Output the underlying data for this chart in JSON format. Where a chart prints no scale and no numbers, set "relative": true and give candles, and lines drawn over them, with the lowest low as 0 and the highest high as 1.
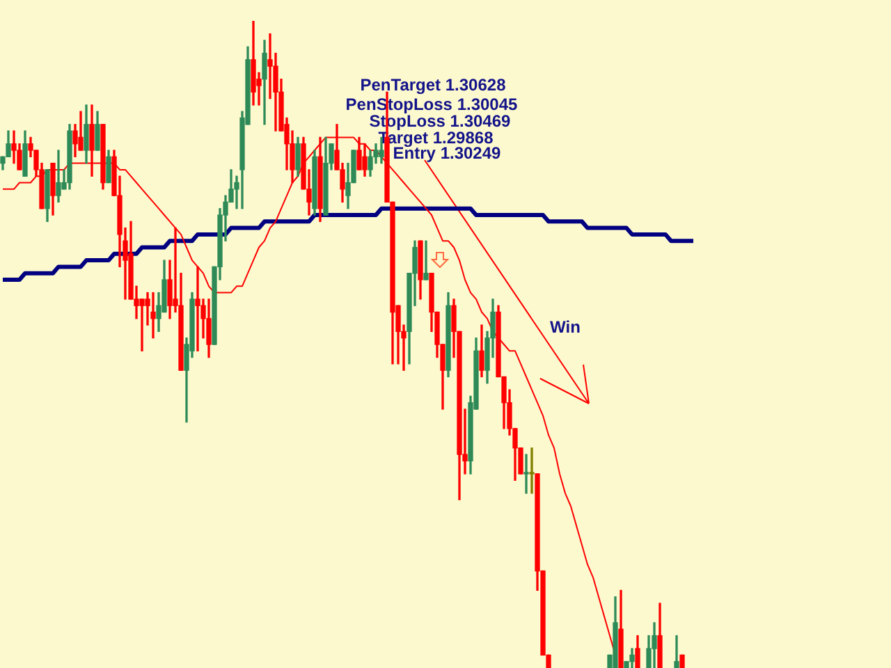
{
  "chart_data": {
    "type": "candlestick",
    "relative": true,
    "tick_labels": false,
    "marker": "none",
    "categories": [
      null,
      null,
      null,
      null,
      null,
      null,
      null,
      null,
      null,
      null,
      null,
      null,
      null,
      null,
      null,
      null,
      null,
      null,
      null,
      null,
      null,
      null,
      null,
      null,
      null,
      null,
      null,
      null,
      null,
      null,
      null,
      null,
      null,
      null,
      null,
      null,
      null,
      null,
      null,
      null,
      null,
      null,
      null,
      null,
      null,
      null,
      null,
      null,
      null,
      null,
      null,
      null,
      null,
      null,
      null,
      null,
      null,
      null,
      null,
      null,
      null,
      null,
      null,
      null,
      null,
      null,
      null,
      null,
      null,
      null,
      null,
      null,
      null,
      null,
      null,
      null,
      null,
      null,
      null,
      null,
      null,
      null,
      null,
      null,
      null,
      null,
      null,
      null,
      null,
      null,
      null,
      null,
      null,
      null,
      null,
      null,
      null,
      null,
      null,
      null,
      null,
      null,
      null,
      null,
      null,
      null,
      null,
      null,
      null,
      null,
      null,
      null,
      null,
      null,
      null,
      null,
      null,
      null,
      null,
      null,
      null,
      null,
      null,
      null,
      null,
      null,
      null,
      null,
      null,
      null,
      null,
      null,
      null,
      null,
      null,
      null,
      null,
      null,
      null,
      null,
      null,
      null,
      null,
      null,
      null,
      null,
      null,
      null,
      null,
      null,
      null,
      null,
      null,
      null,
      null,
      null,
      null,
      null,
      null,
      null
    ],
    "ohlc": [
      [
        0.78,
        0.79,
        0.77,
        0.79
      ],
      [
        0.79,
        0.83,
        0.79,
        0.81
      ],
      [
        0.81,
        0.83,
        0.78,
        0.8
      ],
      [
        0.8,
        0.81,
        0.77,
        0.77
      ],
      [
        0.76,
        0.83,
        0.76,
        0.81
      ],
      [
        0.81,
        0.82,
        0.79,
        0.8
      ],
      [
        0.8,
        0.8,
        0.76,
        0.77
      ],
      [
        0.77,
        0.78,
        0.71,
        0.71
      ],
      [
        0.71,
        0.77,
        0.69,
        0.77
      ],
      [
        0.78,
        0.78,
        0.7,
        0.73
      ],
      [
        0.73,
        0.8,
        0.72,
        0.75
      ],
      [
        0.74,
        0.77,
        0.74,
        0.75
      ],
      [
        0.75,
        0.84,
        0.74,
        0.83
      ],
      [
        0.83,
        0.84,
        0.79,
        0.81
      ],
      [
        0.82,
        0.86,
        0.8,
        0.8
      ],
      [
        0.8,
        0.87,
        0.78,
        0.84
      ],
      [
        0.84,
        0.87,
        0.76,
        0.8
      ],
      [
        0.8,
        0.86,
        0.8,
        0.84
      ],
      [
        0.84,
        0.84,
        0.74,
        0.75
      ],
      [
        0.75,
        0.8,
        0.75,
        0.79
      ],
      [
        0.79,
        0.8,
        0.73,
        0.73
      ],
      [
        0.73,
        0.76,
        0.62,
        0.67
      ],
      [
        0.66,
        0.68,
        0.57,
        0.63
      ],
      [
        0.64,
        0.69,
        0.57,
        0.57
      ],
      [
        0.57,
        0.59,
        0.54,
        0.56
      ],
      [
        0.57,
        0.57,
        0.49,
        0.56
      ],
      [
        0.57,
        0.58,
        0.53,
        0.56
      ],
      [
        0.55,
        0.58,
        0.51,
        0.54
      ],
      [
        0.54,
        0.58,
        0.52,
        0.56
      ],
      [
        0.55,
        0.63,
        0.55,
        0.6
      ],
      [
        0.6,
        0.63,
        0.54,
        0.56
      ],
      [
        0.57,
        0.68,
        0.55,
        0.56
      ],
      [
        0.56,
        0.61,
        0.46,
        0.46
      ],
      [
        0.46,
        0.51,
        0.38,
        0.5
      ],
      [
        0.49,
        0.58,
        0.48,
        0.57
      ],
      [
        0.57,
        0.62,
        0.49,
        0.56
      ],
      [
        0.56,
        0.57,
        0.51,
        0.54
      ],
      [
        0.54,
        0.57,
        0.48,
        0.5
      ],
      [
        0.5,
        0.62,
        0.5,
        0.62
      ],
      [
        0.62,
        0.71,
        0.6,
        0.7
      ],
      [
        0.7,
        0.73,
        0.66,
        0.72
      ],
      [
        0.72,
        0.77,
        0.72,
        0.74
      ],
      [
        0.74,
        0.76,
        0.71,
        0.75
      ],
      [
        0.77,
        0.86,
        0.71,
        0.85
      ],
      [
        0.84,
        0.96,
        0.84,
        0.94
      ],
      [
        0.94,
        1.0,
        0.87,
        0.89
      ],
      [
        0.91,
        0.92,
        0.87,
        0.9
      ],
      [
        0.91,
        0.97,
        0.84,
        0.95
      ],
      [
        0.94,
        0.98,
        0.88,
        0.93
      ],
      [
        0.93,
        0.95,
        0.83,
        0.89
      ],
      [
        0.89,
        0.91,
        0.83,
        0.83
      ],
      [
        0.84,
        0.85,
        0.77,
        0.81
      ],
      [
        0.81,
        0.83,
        0.75,
        0.77
      ],
      [
        0.77,
        0.82,
        0.76,
        0.81
      ],
      [
        0.81,
        0.82,
        0.74,
        0.74
      ],
      [
        0.74,
        0.77,
        0.7,
        0.72
      ],
      [
        0.71,
        0.8,
        0.7,
        0.79
      ],
      [
        0.79,
        0.82,
        0.69,
        0.71
      ],
      [
        0.7,
        0.82,
        0.7,
        0.78
      ],
      [
        0.78,
        0.81,
        0.77,
        0.81
      ],
      [
        0.8,
        0.84,
        0.77,
        0.77
      ],
      [
        0.77,
        0.78,
        0.72,
        0.74
      ],
      [
        0.73,
        0.78,
        0.71,
        0.75
      ],
      [
        0.75,
        0.8,
        0.75,
        0.8
      ],
      [
        0.8,
        0.82,
        0.77,
        0.77
      ],
      [
        0.79,
        0.81,
        0.76,
        0.77
      ],
      [
        0.77,
        0.8,
        0.76,
        0.79
      ],
      [
        0.79,
        0.81,
        0.78,
        0.8
      ],
      [
        0.79,
        0.82,
        0.78,
        0.8
      ],
      [
        0.82,
        0.89,
        0.72,
        0.72
      ],
      [
        0.72,
        0.72,
        0.47,
        0.55
      ],
      [
        0.56,
        0.56,
        0.47,
        0.52
      ],
      [
        0.52,
        0.53,
        0.46,
        0.51
      ],
      [
        0.52,
        0.61,
        0.47,
        0.61
      ],
      [
        0.61,
        0.66,
        0.56,
        0.65
      ],
      [
        0.66,
        0.66,
        0.57,
        0.6
      ],
      [
        0.6,
        0.66,
        0.6,
        0.61
      ],
      [
        0.61,
        0.61,
        0.52,
        0.55
      ],
      [
        0.55,
        0.55,
        0.48,
        0.5
      ],
      [
        0.5,
        0.5,
        0.4,
        0.46
      ],
      [
        0.46,
        0.58,
        0.45,
        0.56
      ],
      [
        0.56,
        0.57,
        0.48,
        0.52
      ],
      [
        0.52,
        0.52,
        0.26,
        0.33
      ],
      [
        0.33,
        0.4,
        0.3,
        0.32
      ],
      [
        0.32,
        0.42,
        0.3,
        0.41
      ],
      [
        0.4,
        0.51,
        0.4,
        0.49
      ],
      [
        0.49,
        0.53,
        0.45,
        0.46
      ],
      [
        0.46,
        0.52,
        0.44,
        0.51
      ],
      [
        0.51,
        0.57,
        0.48,
        0.55
      ],
      [
        0.55,
        0.56,
        0.45,
        0.45
      ],
      [
        0.45,
        0.45,
        0.37,
        0.41
      ],
      [
        0.41,
        0.43,
        0.36,
        0.37
      ],
      [
        0.37,
        0.37,
        0.29,
        0.34
      ],
      [
        0.34,
        0.34,
        0.3,
        0.3
      ],
      [
        0.3,
        0.33,
        0.27,
        0.3
      ],
      [
        0.3,
        0.34,
        0.27,
        0.3
      ],
      [
        0.3,
        0.3,
        0.12,
        0.15
      ],
      [
        0.15,
        0.15,
        0.02,
        0.02
      ],
      [
        0.02,
        0.02,
        0,
        0
      ],
      null,
      null,
      null,
      null,
      null,
      null,
      null,
      null,
      null,
      null,
      [
        0,
        0.02,
        0,
        0.02
      ],
      [
        0,
        0.11,
        0,
        0.07
      ],
      [
        0.06,
        0.12,
        0,
        0
      ],
      [
        0,
        0.01,
        0,
        0.01
      ],
      [
        0.01,
        0.03,
        0,
        0.02
      ],
      [
        0.03,
        0.05,
        0,
        0
      ],
      null,
      [
        0,
        0.05,
        0,
        0.03
      ],
      [
        0.03,
        0.07,
        0,
        0.05
      ],
      [
        0.05,
        0.1,
        0,
        0
      ],
      null,
      null,
      [
        0,
        0.05,
        0,
        0.01
      ],
      [
        0.02,
        0.02,
        0,
        0
      ],
      null,
      null,
      null,
      null,
      null,
      null,
      null,
      null,
      null,
      null,
      null,
      null,
      null,
      null,
      null,
      null,
      null,
      null,
      null,
      null,
      null,
      null,
      null,
      null,
      null,
      null,
      null,
      null,
      null,
      null,
      null,
      null,
      null,
      null,
      null,
      null,
      null
    ],
    "colors": [
      "#2e8b57",
      "#2e8b57",
      "#ff0000",
      "#ff0000",
      "#2e8b57",
      "#ff0000",
      "#ff0000",
      "#ff0000",
      "#2e8b57",
      "#ff0000",
      "#2e8b57",
      "#2e8b57",
      "#2e8b57",
      "#ff0000",
      "#ff0000",
      "#2e8b57",
      "#ff0000",
      "#2e8b57",
      "#ff0000",
      "#2e8b57",
      "#ff0000",
      "#ff0000",
      "#ff0000",
      "#ff0000",
      "#ff0000",
      "#ff0000",
      "#ff0000",
      "#ff0000",
      "#2e8b57",
      "#2e8b57",
      "#ff0000",
      "#ff0000",
      "#ff0000",
      "#2e8b57",
      "#2e8b57",
      "#ff0000",
      "#ff0000",
      "#ff0000",
      "#2e8b57",
      "#2e8b57",
      "#2e8b57",
      "#2e8b57",
      "#2e8b57",
      "#2e8b57",
      "#2e8b57",
      "#ff0000",
      "#ff0000",
      "#2e8b57",
      "#ff0000",
      "#ff0000",
      "#ff0000",
      "#ff0000",
      "#ff0000",
      "#2e8b57",
      "#ff0000",
      "#ff0000",
      "#2e8b57",
      "#ff0000",
      "#2e8b57",
      "#2e8b57",
      "#ff0000",
      "#ff0000",
      "#2e8b57",
      "#2e8b57",
      "#ff0000",
      "#ff0000",
      "#2e8b57",
      "#2e8b57",
      "#2e8b57",
      "#ff0000",
      "#ff0000",
      "#ff0000",
      "#ff0000",
      "#2e8b57",
      "#2e8b57",
      "#ff0000",
      "#2e8b57",
      "#ff0000",
      "#ff0000",
      "#ff0000",
      "#2e8b57",
      "#ff0000",
      "#ff0000",
      "#ff0000",
      "#2e8b57",
      "#2e8b57",
      "#ff0000",
      "#2e8b57",
      "#2e8b57",
      "#ff0000",
      "#ff0000",
      "#ff0000",
      "#ff0000",
      "#ff0000",
      "#2e8b57",
      "#808000",
      "#ff0000",
      "#ff0000",
      "#ff0000",
      null,
      null,
      null,
      null,
      null,
      null,
      null,
      null,
      null,
      null,
      "#2e8b57",
      "#2e8b57",
      "#ff0000",
      "#2e8b57",
      "#2e8b57",
      "#ff0000",
      null,
      "#2e8b57",
      "#2e8b57",
      "#ff0000",
      null,
      null,
      "#2e8b57",
      "#ff0000",
      null,
      null,
      null,
      null,
      null,
      null,
      null,
      null,
      null,
      null,
      null,
      null,
      null,
      null,
      null,
      null,
      null,
      null,
      null,
      null,
      null,
      null,
      null,
      null,
      null,
      null,
      null,
      null,
      null,
      null,
      null,
      null,
      null,
      null,
      null,
      null,
      null
    ],
    "series": [
      {
        "type": "line",
        "color": "#ff0000",
        "values": [
          0.74,
          0.74,
          0.74,
          0.75,
          0.75,
          0.75,
          0.76,
          0.76,
          0.77,
          0.77,
          0.77,
          0.77,
          0.78,
          0.78,
          0.78,
          0.78,
          0.78,
          0.78,
          0.78,
          0.78,
          0.78,
          0.77,
          0.77,
          0.76,
          0.75,
          0.74,
          0.73,
          0.72,
          0.71,
          0.7,
          0.69,
          0.68,
          0.67,
          0.65,
          0.63,
          0.62,
          0.61,
          0.59,
          0.58,
          0.58,
          0.58,
          0.58,
          0.59,
          0.59,
          0.61,
          0.63,
          0.65,
          0.66,
          0.68,
          0.69,
          0.71,
          0.73,
          0.75,
          0.76,
          0.78,
          0.79,
          0.8,
          0.81,
          0.82,
          0.82,
          0.82,
          0.82,
          0.82,
          0.82,
          0.81,
          0.81,
          0.8,
          0.8,
          0.79,
          0.78,
          0.77,
          0.76,
          0.75,
          0.74,
          0.73,
          0.72,
          0.71,
          0.7,
          0.68,
          0.66,
          0.66,
          0.65,
          0.63,
          0.6,
          0.58,
          0.57,
          0.55,
          0.54,
          0.52,
          0.51,
          0.5,
          0.49,
          0.49,
          0.47,
          0.45,
          0.43,
          0.41,
          0.39,
          0.36,
          0.34,
          0.3,
          0.27,
          0.25,
          0.22,
          0.19,
          0.16,
          0.14,
          0.11,
          0.08,
          0.05,
          0.02,
          null,
          null,
          null,
          null,
          null,
          null,
          null,
          null,
          null,
          null,
          null,
          null,
          null,
          null,
          null,
          null,
          null,
          null,
          null,
          null,
          null,
          null,
          null,
          null,
          null,
          null,
          null,
          null,
          null,
          null,
          null,
          null,
          null,
          null,
          null,
          null,
          null,
          null,
          null,
          null,
          null,
          null,
          null,
          null,
          null,
          null,
          null,
          null,
          null
        ]
      },
      {
        "type": "line",
        "color": "#000080",
        "values": [
          0.6,
          0.6,
          0.6,
          0.6,
          0.61,
          0.61,
          0.61,
          0.61,
          0.61,
          0.61,
          0.62,
          0.62,
          0.62,
          0.62,
          0.62,
          0.63,
          0.63,
          0.63,
          0.63,
          0.63,
          0.64,
          0.64,
          0.64,
          0.64,
          0.64,
          0.65,
          0.65,
          0.65,
          0.65,
          0.65,
          0.66,
          0.66,
          0.66,
          0.66,
          0.66,
          0.67,
          0.67,
          0.67,
          0.67,
          0.67,
          0.67,
          0.68,
          0.68,
          0.68,
          0.68,
          0.68,
          0.68,
          0.69,
          0.69,
          0.69,
          0.69,
          0.69,
          0.69,
          0.69,
          0.69,
          0.69,
          0.7,
          0.7,
          0.7,
          0.7,
          0.7,
          0.7,
          0.7,
          0.7,
          0.7,
          0.7,
          0.7,
          0.7,
          0.71,
          0.71,
          0.71,
          0.71,
          0.71,
          0.71,
          0.71,
          0.71,
          0.71,
          0.71,
          0.71,
          0.71,
          0.71,
          0.71,
          0.71,
          0.71,
          0.71,
          0.7,
          0.7,
          0.7,
          0.7,
          0.7,
          0.7,
          0.7,
          0.7,
          0.7,
          0.7,
          0.7,
          0.7,
          0.7,
          0.69,
          0.69,
          0.69,
          0.69,
          0.69,
          0.69,
          0.69,
          0.68,
          0.68,
          0.68,
          0.68,
          0.68,
          0.68,
          0.68,
          0.68,
          0.67,
          0.67,
          0.67,
          0.67,
          0.67,
          0.67,
          0.67,
          0.66,
          0.66,
          0.66,
          0.66,
          0.66,
          null,
          null,
          null,
          null,
          null,
          null,
          null,
          null,
          null,
          null,
          null,
          null,
          null,
          null,
          null,
          null,
          null,
          null,
          null,
          null,
          null,
          null,
          null,
          null,
          null,
          null,
          null,
          null,
          null,
          null,
          null,
          null,
          null,
          null,
          null
        ]
      }
    ],
    "annotations": [
      "PenTarget 1.30628",
      "PenStopLoss 1.30045",
      "StopLoss 1.30469",
      "Target 1.29868",
      "Entry 1.30249",
      "Win"
    ]
  }
}
